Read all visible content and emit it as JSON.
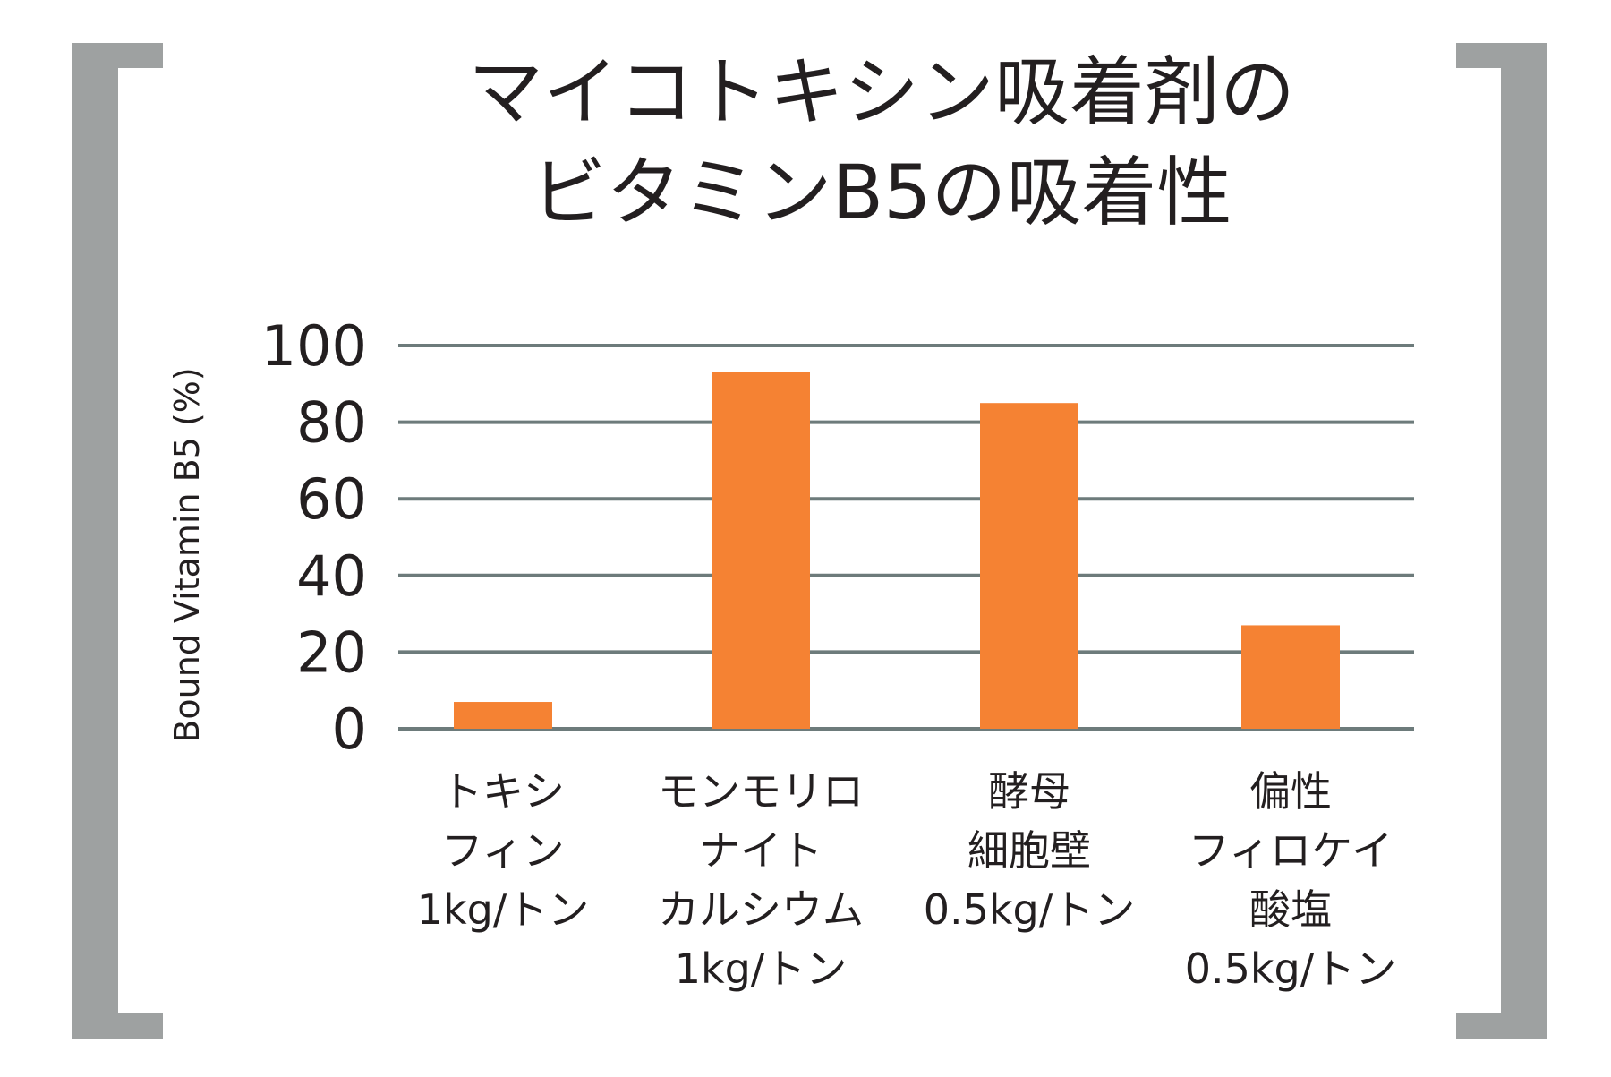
{
  "chart_data": {
    "type": "bar",
    "title_lines": [
      "マイコトキシン吸着剤の",
      "ビタミンB5の吸着性"
    ],
    "ylabel": "Bound Vitamin B5 (%)",
    "xlabel": "",
    "ylim": [
      0,
      100
    ],
    "yticks": [
      "100",
      "80",
      "60",
      "40",
      "20",
      "0"
    ],
    "grid": true,
    "categories": [
      {
        "lines": [
          "トキシ",
          "フィン",
          "1kg/トン"
        ],
        "value": 7
      },
      {
        "lines": [
          "モンモリロ",
          "ナイト",
          "カルシウム",
          "1kg/トン"
        ],
        "value": 93
      },
      {
        "lines": [
          "酵母",
          "細胞壁",
          "0.5kg/トン"
        ],
        "value": 85
      },
      {
        "lines": [
          "偏性",
          "フィロケイ",
          "酸塩",
          "0.5kg/トン"
        ],
        "value": 27
      }
    ],
    "colors": {
      "bar": "#f58233",
      "grid": "#6d7b7b",
      "bracket": "#9ea1a1",
      "text": "#231f20"
    }
  }
}
